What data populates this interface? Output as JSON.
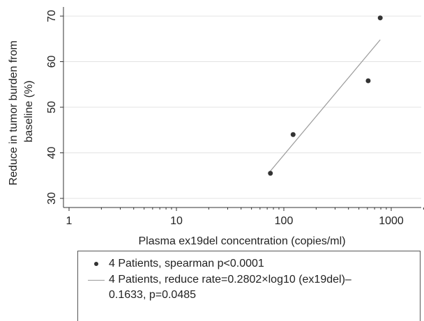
{
  "chart_data": {
    "type": "scatter",
    "xscale": "log10",
    "xlim": [
      1,
      2000
    ],
    "ylim": [
      28,
      72
    ],
    "xticks": [
      1,
      10,
      100,
      1000
    ],
    "xticklabels": [
      "1",
      "10",
      "100",
      "1000"
    ],
    "yticks": [
      30,
      40,
      50,
      60,
      70
    ],
    "yticklabels": [
      "30",
      "40",
      "50",
      "60",
      "70"
    ],
    "xlabel": "Plasma ex19del concentration (copies/ml)",
    "ylabel": "Reduce in tumor burden from baseline (%)",
    "ylabel_lines": [
      "Reduce in tumor burden from",
      "baseline (%)"
    ],
    "grid": "horizontal",
    "legend_position": "bottom",
    "series": [
      {
        "name": "4 Patients, spearman p<0.0001",
        "kind": "scatter",
        "color": "#333333",
        "points": [
          {
            "x": 75,
            "y": 35.5
          },
          {
            "x": 122,
            "y": 44.0
          },
          {
            "x": 610,
            "y": 55.8
          },
          {
            "x": 790,
            "y": 69.6
          }
        ]
      },
      {
        "name": "4 Patients, reduce rate=0.2802×log10 (ex19del)–0.1633, p=0.0485",
        "kind": "line",
        "color": "#9a9a9a",
        "points": [
          {
            "x": 75,
            "y": 36.0
          },
          {
            "x": 790,
            "y": 64.8
          }
        ]
      }
    ]
  },
  "legend": {
    "entries": [
      {
        "label_lines": [
          "4 Patients, spearman p<0.0001"
        ]
      },
      {
        "label_lines": [
          "4 Patients, reduce rate=0.2802×log10 (ex19del)–",
          "0.1633, p=0.0485"
        ]
      }
    ]
  }
}
